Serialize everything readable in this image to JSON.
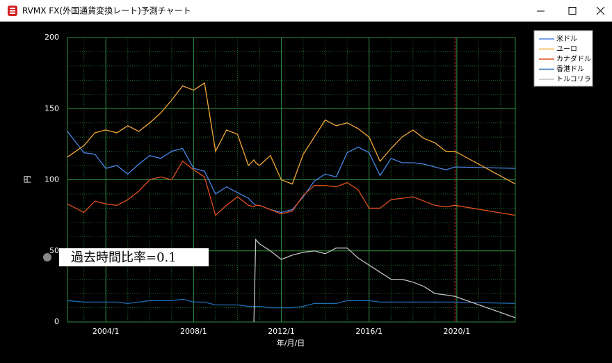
{
  "window": {
    "title": "RVMX FX(外国通貨変換レート)予測チャート"
  },
  "overlay": {
    "label": "過去時間比率=0.1"
  },
  "chart_data": {
    "type": "line",
    "x_label": "年/月/日",
    "y_label": "円",
    "x": [
      "2002/4",
      "2003/1",
      "2003/7",
      "2004/1",
      "2004/7",
      "2005/1",
      "2005/7",
      "2006/1",
      "2006/7",
      "2007/1",
      "2007/7",
      "2008/1",
      "2008/7",
      "2009/1",
      "2009/7",
      "2010/1",
      "2010/7",
      "2010/10",
      "2010/11",
      "2011/1",
      "2011/7",
      "2012/1",
      "2012/7",
      "2013/1",
      "2013/7",
      "2014/1",
      "2014/7",
      "2015/1",
      "2015/7",
      "2016/1",
      "2016/7",
      "2017/1",
      "2017/7",
      "2018/1",
      "2018/7",
      "2019/1",
      "2019/7",
      "2019/12",
      "2022/9"
    ],
    "series": [
      {
        "name": "米ドル",
        "color": "#4a86e8",
        "values": [
          134,
          119,
          118,
          108,
          110,
          104,
          111,
          117,
          115,
          120,
          122,
          108,
          106,
          90,
          95,
          91,
          87,
          83,
          82,
          82,
          79,
          77,
          79,
          88,
          99,
          104,
          102,
          119,
          123,
          119,
          103,
          115,
          112,
          112,
          111,
          109,
          107,
          109,
          108
        ]
      },
      {
        "name": "ユーロ",
        "color": "#f4a836",
        "values": [
          116,
          124,
          133,
          135,
          133,
          138,
          134,
          140,
          147,
          156,
          166,
          163,
          168,
          120,
          135,
          132,
          110,
          114,
          112,
          110,
          117,
          100,
          97,
          118,
          130,
          142,
          138,
          140,
          136,
          130,
          113,
          122,
          130,
          135,
          129,
          126,
          120,
          120,
          97
        ]
      },
      {
        "name": "カナダドル",
        "color": "#e0501e",
        "values": [
          83,
          77,
          85,
          83,
          82,
          86,
          92,
          100,
          102,
          100,
          113,
          107,
          102,
          75,
          82,
          88,
          82,
          81,
          82,
          82,
          79,
          76,
          78,
          89,
          96,
          96,
          95,
          98,
          93,
          80,
          80,
          86,
          87,
          88,
          85,
          82,
          81,
          82,
          75
        ]
      },
      {
        "name": "香港ドル",
        "color": "#1f6fb5",
        "values": [
          15,
          14,
          14,
          14,
          14,
          13,
          14,
          15,
          15,
          15,
          16,
          14,
          14,
          12,
          12,
          12,
          11,
          11,
          11,
          11,
          10,
          10,
          10,
          11,
          13,
          13,
          13,
          15,
          15,
          15,
          14,
          14,
          14,
          14,
          14,
          14,
          14,
          14,
          13
        ]
      },
      {
        "name": "トルコリラ",
        "color": "#c0c0c0",
        "values": [
          null,
          null,
          null,
          null,
          null,
          null,
          null,
          null,
          null,
          null,
          null,
          null,
          null,
          null,
          null,
          null,
          null,
          0,
          58,
          55,
          50,
          44,
          47,
          49,
          50,
          48,
          52,
          52,
          45,
          40,
          35,
          30,
          30,
          28,
          25,
          20,
          19,
          18,
          3
        ]
      }
    ],
    "xlim": [
      "2002/4",
      "2022/9"
    ],
    "xticks": [
      "2004/1",
      "2008/1",
      "2012/1",
      "2016/1",
      "2020/1"
    ],
    "ylim": [
      0,
      200
    ],
    "yticks": [
      0,
      50,
      100,
      150,
      200
    ],
    "grid": true,
    "grid_color": "#2e8b3e",
    "y_minor_step": 10,
    "x_minor_step_years": 1,
    "forecast_start": "2019/12",
    "forecast_line_color": "#e02020",
    "legend": "upper right"
  }
}
